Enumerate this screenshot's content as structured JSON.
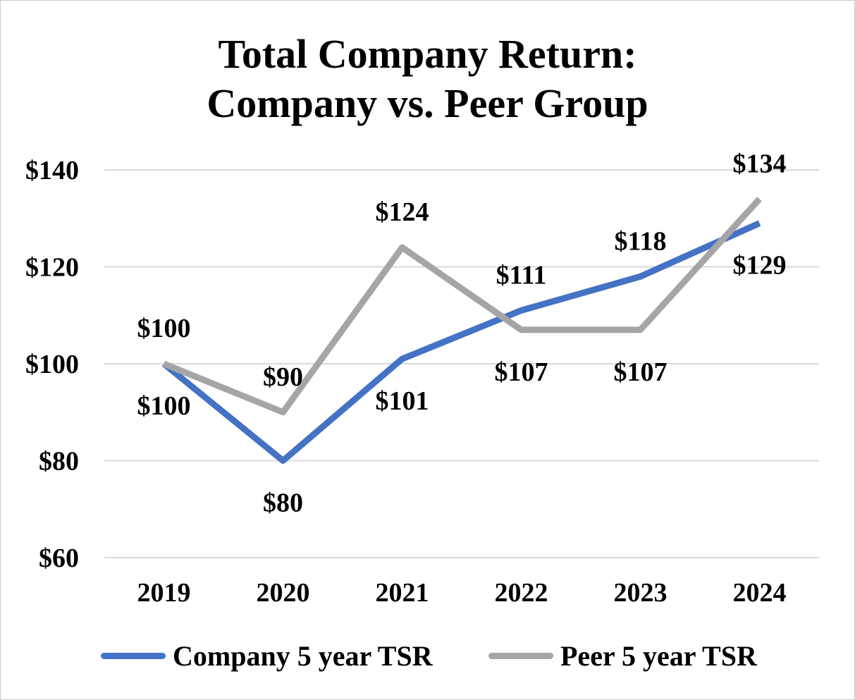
{
  "chart_data": {
    "type": "line",
    "title_lines": [
      "Total Company Return:",
      "Company vs. Peer Group"
    ],
    "categories": [
      "2019",
      "2020",
      "2021",
      "2022",
      "2023",
      "2024"
    ],
    "ylim": [
      60,
      140
    ],
    "yticks": [
      60,
      80,
      100,
      120,
      140
    ],
    "ytick_labels": [
      "$60",
      "$80",
      "$100",
      "$120",
      "$140"
    ],
    "grid": true,
    "legend_position": "bottom",
    "series": [
      {
        "name": "Company 5 year TSR",
        "color": "#4472c4",
        "values": [
          100,
          80,
          101,
          111,
          118,
          129
        ],
        "labels": [
          "$100",
          "$80",
          "$101",
          "$111",
          "$118",
          "$129"
        ]
      },
      {
        "name": "Peer 5 year TSR",
        "color": "#a5a5a5",
        "values": [
          100,
          90,
          124,
          107,
          107,
          134
        ],
        "labels": [
          "$100",
          "$90",
          "$124",
          "$107",
          "$107",
          "$134"
        ]
      }
    ]
  }
}
